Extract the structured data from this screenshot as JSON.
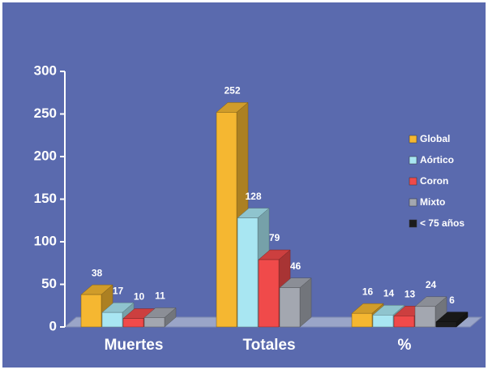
{
  "chart_data": {
    "type": "bar3d",
    "categories": [
      "Muertes",
      "Totales",
      "%"
    ],
    "series": [
      {
        "name": "Global",
        "color": "#f5b731",
        "values": [
          38,
          252,
          16
        ]
      },
      {
        "name": "Aórtico",
        "color": "#a8e6f2",
        "values": [
          17,
          128,
          14
        ]
      },
      {
        "name": "Coron",
        "color": "#f04a4a",
        "values": [
          10,
          79,
          13
        ]
      },
      {
        "name": "Mixto",
        "color": "#a3a7b0",
        "values": [
          11,
          46,
          24
        ]
      },
      {
        "name": "< 75 años",
        "color": "#1c1c1c",
        "values": [
          null,
          null,
          6
        ]
      }
    ],
    "ylim": [
      0,
      300
    ],
    "yticks": [
      0,
      50,
      100,
      150,
      200,
      250,
      300
    ],
    "legend": "right"
  }
}
